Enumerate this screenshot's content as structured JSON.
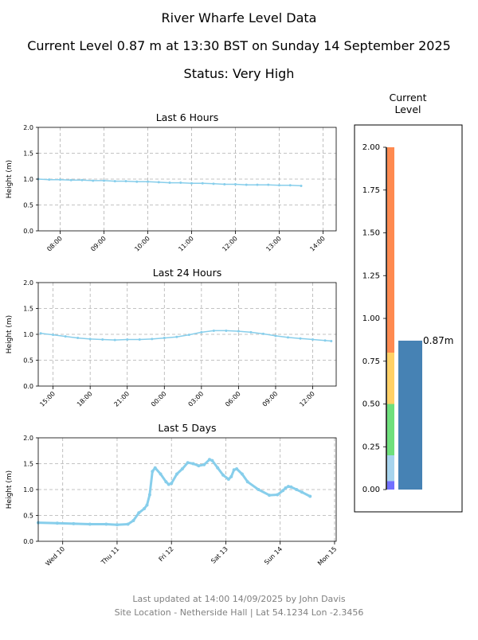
{
  "header": {
    "title": "River Wharfe Level Data",
    "current_line": "Current Level 0.87 m at 13:30 BST on Sunday 14 September 2025",
    "status_line": "Status: Very High"
  },
  "footer": {
    "updated": "Last updated at 14:00 14/09/2025 by John Davis",
    "site": "Site Location - Netherside Hall | Lat 54.1234 Lon -2.3456"
  },
  "colors": {
    "line": "#87CEEB",
    "level_bar": "#4682B4",
    "grid": "#b0b0b0"
  },
  "chart_data": [
    {
      "type": "line",
      "title": "Last 6 Hours",
      "ylabel": "Height (m)",
      "xlabel": "",
      "xlim": [
        7.5,
        14.3
      ],
      "ylim": [
        0,
        2
      ],
      "yticks": [
        "0.0",
        "0.5",
        "1.0",
        "1.5",
        "2.0"
      ],
      "ytick_values": [
        0,
        0.5,
        1,
        1.5,
        2
      ],
      "xticks": [
        "08:00",
        "09:00",
        "10:00",
        "11:00",
        "12:00",
        "13:00",
        "14:00"
      ],
      "xtick_values": [
        8,
        9,
        10,
        11,
        12,
        13,
        14
      ],
      "grid": true,
      "series": [
        {
          "x": [
            7.5,
            7.75,
            8.0,
            8.25,
            8.5,
            8.75,
            9.0,
            9.25,
            9.5,
            9.75,
            10.0,
            10.25,
            10.5,
            10.75,
            11.0,
            11.25,
            11.5,
            11.75,
            12.0,
            12.25,
            12.5,
            12.75,
            13.0,
            13.25,
            13.5
          ],
          "y": [
            1.0,
            0.99,
            0.99,
            0.98,
            0.98,
            0.97,
            0.97,
            0.96,
            0.96,
            0.95,
            0.95,
            0.94,
            0.93,
            0.93,
            0.92,
            0.92,
            0.91,
            0.9,
            0.9,
            0.89,
            0.89,
            0.89,
            0.88,
            0.88,
            0.87
          ]
        }
      ]
    },
    {
      "type": "line",
      "title": "Last 24 Hours",
      "ylabel": "Height (m)",
      "xlabel": "",
      "xlim": [
        13.8,
        37.9
      ],
      "ylim": [
        0,
        2
      ],
      "yticks": [
        "0.0",
        "0.5",
        "1.0",
        "1.5",
        "2.0"
      ],
      "ytick_values": [
        0,
        0.5,
        1,
        1.5,
        2
      ],
      "xticks": [
        "15:00",
        "18:00",
        "21:00",
        "00:00",
        "03:00",
        "06:00",
        "09:00",
        "12:00"
      ],
      "xtick_values": [
        15,
        18,
        21,
        24,
        27,
        30,
        33,
        36
      ],
      "grid": true,
      "series": [
        {
          "x": [
            14,
            15,
            16,
            17,
            18,
            19,
            20,
            21,
            22,
            23,
            24,
            25,
            26,
            27,
            28,
            29,
            30,
            31,
            32,
            33,
            34,
            35,
            36,
            37,
            37.5
          ],
          "y": [
            1.02,
            0.99,
            0.96,
            0.93,
            0.91,
            0.9,
            0.89,
            0.9,
            0.9,
            0.91,
            0.93,
            0.95,
            0.99,
            1.04,
            1.07,
            1.07,
            1.06,
            1.04,
            1.01,
            0.97,
            0.94,
            0.92,
            0.9,
            0.88,
            0.87
          ]
        }
      ]
    },
    {
      "type": "line",
      "title": "Last 5 Days",
      "ylabel": "Height (m)",
      "xlabel": "",
      "xlim": [
        9.55,
        15.03
      ],
      "ylim": [
        0,
        2
      ],
      "yticks": [
        "0.0",
        "0.5",
        "1.0",
        "1.5",
        "2.0"
      ],
      "ytick_values": [
        0,
        0.5,
        1,
        1.5,
        2
      ],
      "xticks": [
        "Wed 10",
        "Thu 11",
        "Fri 12",
        "Sat 13",
        "Sun 14",
        "Mon 15"
      ],
      "xtick_values": [
        10,
        11,
        12,
        13,
        14,
        15
      ],
      "grid": true,
      "series": [
        {
          "x": [
            9.55,
            9.9,
            10.2,
            10.5,
            10.8,
            11.0,
            11.2,
            11.3,
            11.4,
            11.5,
            11.55,
            11.6,
            11.65,
            11.7,
            11.8,
            11.9,
            11.95,
            12.0,
            12.1,
            12.2,
            12.3,
            12.4,
            12.5,
            12.6,
            12.7,
            12.75,
            12.85,
            12.95,
            13.05,
            13.1,
            13.15,
            13.2,
            13.3,
            13.4,
            13.6,
            13.8,
            13.95,
            14.05,
            14.1,
            14.15,
            14.2,
            14.3,
            14.4,
            14.55
          ],
          "y": [
            0.36,
            0.35,
            0.34,
            0.33,
            0.33,
            0.32,
            0.33,
            0.4,
            0.55,
            0.63,
            0.7,
            0.9,
            1.35,
            1.42,
            1.3,
            1.15,
            1.1,
            1.12,
            1.3,
            1.4,
            1.52,
            1.5,
            1.46,
            1.48,
            1.58,
            1.56,
            1.42,
            1.28,
            1.2,
            1.25,
            1.38,
            1.4,
            1.3,
            1.15,
            1.0,
            0.89,
            0.9,
            0.98,
            1.03,
            1.06,
            1.05,
            1.0,
            0.95,
            0.87
          ]
        }
      ]
    },
    {
      "type": "bar",
      "title": "Current\nLevel",
      "ylim": [
        0,
        2
      ],
      "yticks": [
        "0.00",
        "0.25",
        "0.50",
        "0.75",
        "1.00",
        "1.25",
        "1.50",
        "1.75",
        "2.00"
      ],
      "ytick_values": [
        0,
        0.25,
        0.5,
        0.75,
        1.0,
        1.25,
        1.5,
        1.75,
        2.0
      ],
      "bands": [
        {
          "from": 0.0,
          "to": 0.05,
          "color": "#7070ff"
        },
        {
          "from": 0.05,
          "to": 0.2,
          "color": "#a6d4ee"
        },
        {
          "from": 0.2,
          "to": 0.5,
          "color": "#6ee07c"
        },
        {
          "from": 0.5,
          "to": 0.8,
          "color": "#ffd166"
        },
        {
          "from": 0.8,
          "to": 2.0,
          "color": "#ff8a50"
        }
      ],
      "values": [
        0.87
      ],
      "value_label": "0.87m"
    }
  ]
}
